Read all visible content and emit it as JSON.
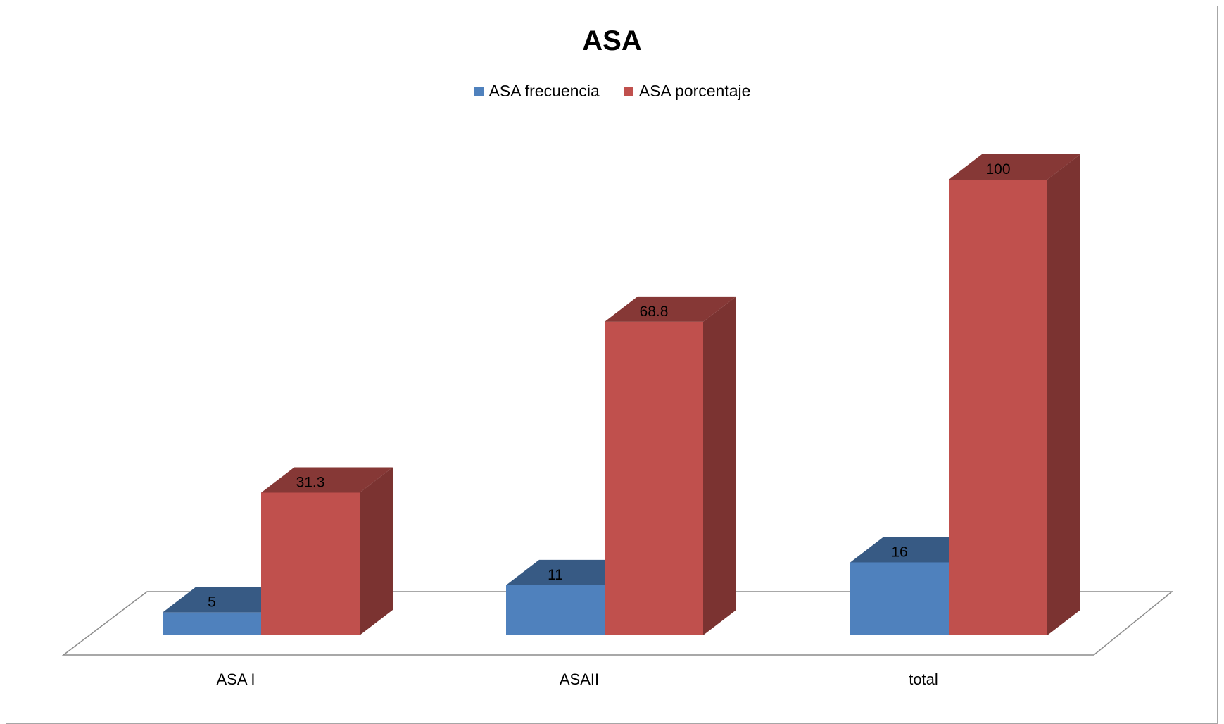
{
  "chart_data": {
    "type": "bar",
    "title": "ASA",
    "categories": [
      "ASA I",
      "ASAII",
      "total"
    ],
    "series": [
      {
        "name": "ASA frecuencia",
        "values": [
          5,
          11,
          16
        ],
        "labels": [
          "5",
          "11",
          "16"
        ],
        "color": "#4f81bd"
      },
      {
        "name": "ASA porcentaje",
        "values": [
          31.3,
          68.8,
          100
        ],
        "labels": [
          "31.3",
          "68.8",
          "100"
        ],
        "color": "#c0504d"
      }
    ],
    "xlabel": "",
    "ylabel": "",
    "ylim": [
      0,
      100
    ],
    "grid": false,
    "legend_position": "top",
    "style": "3d-column"
  }
}
